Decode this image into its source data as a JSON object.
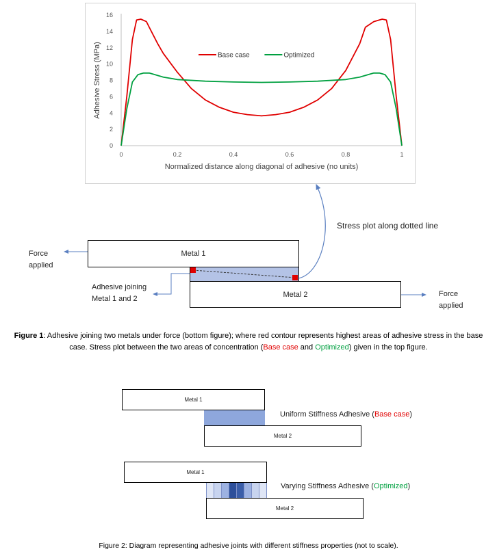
{
  "chart_data": {
    "type": "line",
    "ylabel": "Adhesive Stress (MPa)",
    "xlabel": "Normalized distance along diagonal of adhesive (no units)",
    "xlim": [
      0,
      1
    ],
    "ylim": [
      0,
      16
    ],
    "xticks": [
      "0",
      "0.2",
      "0.4",
      "0.6",
      "0.8",
      "1"
    ],
    "yticks": [
      "0",
      "2",
      "4",
      "6",
      "8",
      "10",
      "12",
      "14",
      "16"
    ],
    "grid": false,
    "legend": "top-right",
    "series": [
      {
        "name": "Base case",
        "color": "#e00000",
        "x": [
          0,
          0.02,
          0.04,
          0.055,
          0.07,
          0.09,
          0.1,
          0.13,
          0.15,
          0.2,
          0.25,
          0.3,
          0.35,
          0.4,
          0.45,
          0.5,
          0.55,
          0.6,
          0.65,
          0.7,
          0.75,
          0.8,
          0.85,
          0.87,
          0.9,
          0.93,
          0.945,
          0.96,
          0.98,
          1
        ],
        "y": [
          0,
          6,
          13,
          15.4,
          15.5,
          15.2,
          14.5,
          12.5,
          11.3,
          9.0,
          7.0,
          5.6,
          4.7,
          4.1,
          3.8,
          3.65,
          3.8,
          4.1,
          4.7,
          5.6,
          7.0,
          9.2,
          12.5,
          14.5,
          15.2,
          15.5,
          15.4,
          13,
          6,
          0
        ]
      },
      {
        "name": "Optimized",
        "color": "#00a040",
        "x": [
          0,
          0.02,
          0.04,
          0.06,
          0.08,
          0.1,
          0.12,
          0.15,
          0.2,
          0.3,
          0.4,
          0.5,
          0.6,
          0.7,
          0.8,
          0.85,
          0.88,
          0.9,
          0.92,
          0.94,
          0.96,
          0.98,
          1
        ],
        "y": [
          0,
          4.5,
          7.8,
          8.7,
          8.9,
          8.9,
          8.7,
          8.4,
          8.1,
          7.9,
          7.8,
          7.75,
          7.8,
          7.9,
          8.1,
          8.4,
          8.7,
          8.9,
          8.9,
          8.7,
          7.8,
          4.5,
          0
        ]
      }
    ]
  },
  "fig1": {
    "annotation": "Stress plot along dotted line",
    "metal1": "Metal 1",
    "metal2": "Metal 2",
    "force_left": [
      "Force",
      "applied"
    ],
    "force_right": [
      "Force",
      "applied"
    ],
    "adhesive_label": [
      "Adhesive joining",
      "Metal 1 and 2"
    ],
    "adhesive_color": "#b4c3e6",
    "concentration_color": "#e00000",
    "arrow_color": "#5a7fc0",
    "caption": {
      "label": "Figure 1",
      "part1": ": Adhesive joining two metals under force (bottom figure); where red contour represents highest areas of adhesive stress in the base case. Stress plot between the two areas of concentration (",
      "base": "Base case",
      "and": " and ",
      "opt": "Optimized",
      "part2": ") given in the top figure."
    }
  },
  "fig2": {
    "top": {
      "metal1": "Metal 1",
      "metal2": "Metal 2",
      "label_prefix": "Uniform Stiffness Adhesive (",
      "label_highlight": "Base case",
      "label_suffix": ")",
      "adhesive_color": "#8ea7dc"
    },
    "bottom": {
      "metal1": "Metal 1",
      "metal2": "Metal 2",
      "label_prefix": "Varying Stiffness Adhesive (",
      "label_highlight": "Optimized",
      "label_suffix": ")",
      "segment_colors": [
        "#dfe6f6",
        "#c8d4ef",
        "#9db2e2",
        "#2d4f9a",
        "#3a5da8",
        "#9db2e2",
        "#c8d4ef",
        "#dfe6f6"
      ]
    },
    "caption": "Figure 2: Diagram representing adhesive joints with different stiffness properties (not to scale)."
  }
}
